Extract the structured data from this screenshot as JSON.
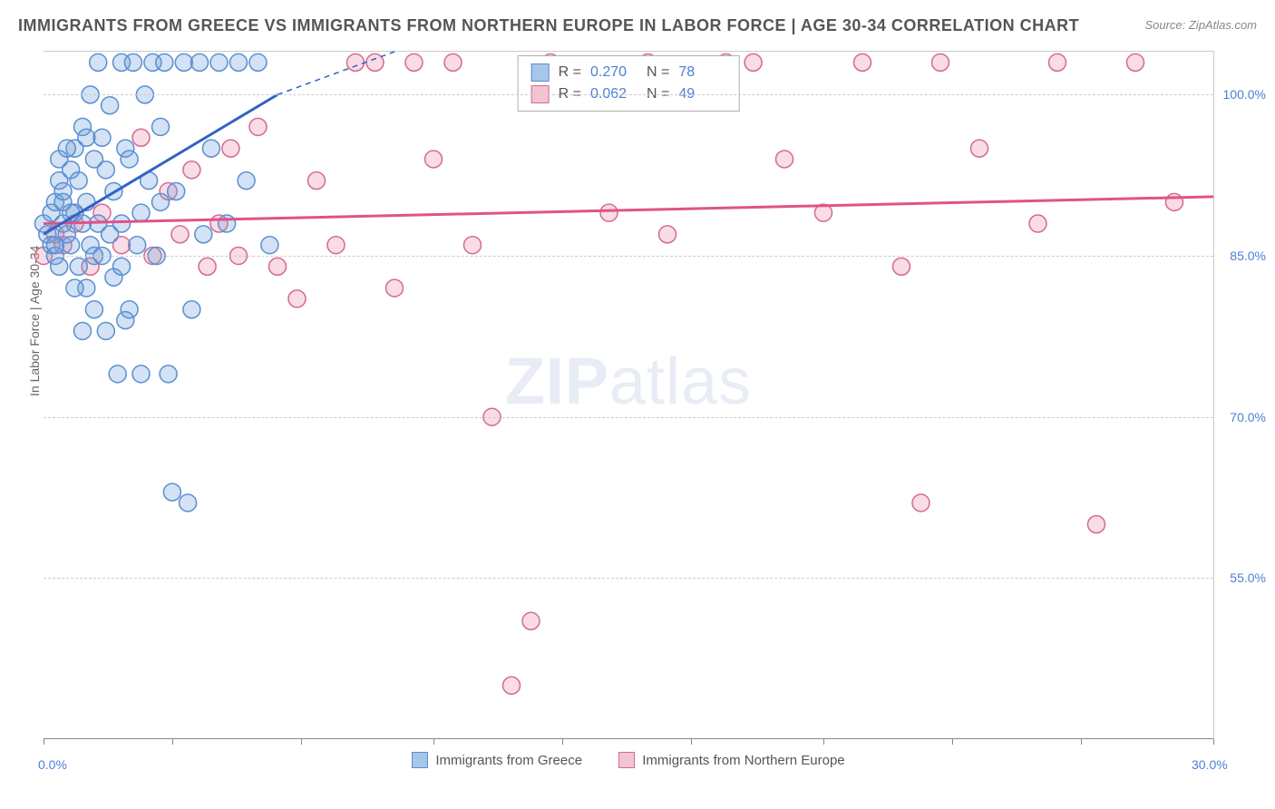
{
  "title": "IMMIGRANTS FROM GREECE VS IMMIGRANTS FROM NORTHERN EUROPE IN LABOR FORCE | AGE 30-34 CORRELATION CHART",
  "source": "Source: ZipAtlas.com",
  "watermark_bold": "ZIP",
  "watermark_rest": "atlas",
  "y_axis_label": "In Labor Force | Age 30-34",
  "xlim": [
    0,
    30
  ],
  "ylim": [
    40,
    104
  ],
  "x_ticks": [
    0,
    3.3,
    6.6,
    10,
    13.3,
    16.6,
    20,
    23.3,
    26.6,
    30
  ],
  "x_tick_labels": {
    "0": "0.0%",
    "30": "30.0%"
  },
  "y_ticks": [
    55,
    70,
    85,
    100
  ],
  "y_tick_labels": {
    "55": "55.0%",
    "70": "70.0%",
    "85": "85.0%",
    "100": "100.0%"
  },
  "grid_color": "#cccccc",
  "background_color": "#ffffff",
  "series": {
    "greece": {
      "label": "Immigrants from Greece",
      "fill": "rgba(108,160,220,0.30)",
      "stroke": "#5a8fd0",
      "swatch_fill": "#a8c6ea",
      "swatch_border": "#5a8fd0",
      "r_value": "0.270",
      "n_value": "78",
      "trend": {
        "x1": 0,
        "y1": 87,
        "x2": 6,
        "y2": 100,
        "color": "#2f63c7",
        "width": 3
      },
      "trend_extrapolate": {
        "x1": 6,
        "y1": 100,
        "x2": 9,
        "y2": 104
      },
      "points": [
        [
          0.0,
          88
        ],
        [
          0.1,
          87
        ],
        [
          0.2,
          89
        ],
        [
          0.2,
          86
        ],
        [
          0.3,
          90
        ],
        [
          0.3,
          85
        ],
        [
          0.4,
          92
        ],
        [
          0.4,
          84
        ],
        [
          0.5,
          88
        ],
        [
          0.5,
          91
        ],
        [
          0.6,
          87
        ],
        [
          0.7,
          93
        ],
        [
          0.7,
          86
        ],
        [
          0.8,
          89
        ],
        [
          0.8,
          95
        ],
        [
          0.9,
          84
        ],
        [
          1.0,
          97
        ],
        [
          1.0,
          88
        ],
        [
          1.1,
          82
        ],
        [
          1.1,
          90
        ],
        [
          1.2,
          86
        ],
        [
          1.2,
          100
        ],
        [
          1.3,
          94
        ],
        [
          1.3,
          80
        ],
        [
          1.4,
          103
        ],
        [
          1.5,
          96
        ],
        [
          1.5,
          85
        ],
        [
          1.6,
          78
        ],
        [
          1.7,
          99
        ],
        [
          1.8,
          91
        ],
        [
          1.8,
          83
        ],
        [
          1.9,
          74
        ],
        [
          2.0,
          103
        ],
        [
          2.0,
          88
        ],
        [
          2.1,
          95
        ],
        [
          2.2,
          80
        ],
        [
          2.3,
          103
        ],
        [
          2.4,
          86
        ],
        [
          2.5,
          74
        ],
        [
          2.6,
          100
        ],
        [
          2.7,
          92
        ],
        [
          2.8,
          103
        ],
        [
          2.9,
          85
        ],
        [
          3.0,
          97
        ],
        [
          3.1,
          103
        ],
        [
          3.2,
          74
        ],
        [
          3.3,
          63
        ],
        [
          3.4,
          91
        ],
        [
          3.6,
          103
        ],
        [
          3.7,
          62
        ],
        [
          3.8,
          80
        ],
        [
          4.0,
          103
        ],
        [
          4.1,
          87
        ],
        [
          4.3,
          95
        ],
        [
          4.5,
          103
        ],
        [
          4.7,
          88
        ],
        [
          5.0,
          103
        ],
        [
          5.2,
          92
        ],
        [
          5.5,
          103
        ],
        [
          5.8,
          86
        ],
        [
          1.0,
          78
        ],
        [
          0.6,
          95
        ],
        [
          1.4,
          88
        ],
        [
          0.9,
          92
        ],
        [
          2.1,
          79
        ],
        [
          0.4,
          94
        ],
        [
          1.7,
          87
        ],
        [
          0.8,
          82
        ],
        [
          1.1,
          96
        ],
        [
          2.5,
          89
        ],
        [
          3.0,
          90
        ],
        [
          0.3,
          86
        ],
        [
          1.6,
          93
        ],
        [
          2.0,
          84
        ],
        [
          0.5,
          90
        ],
        [
          1.3,
          85
        ],
        [
          0.7,
          89
        ],
        [
          2.2,
          94
        ]
      ]
    },
    "neurope": {
      "label": "Immigrants from Northern Europe",
      "fill": "rgba(235,140,170,0.30)",
      "stroke": "#d46a8f",
      "swatch_fill": "#f4c3d2",
      "swatch_border": "#d46a8f",
      "r_value": "0.062",
      "n_value": "49",
      "trend": {
        "x1": 0,
        "y1": 88,
        "x2": 30,
        "y2": 90.5,
        "color": "#e0528a",
        "width": 3
      },
      "points": [
        [
          0.0,
          85
        ],
        [
          0.3,
          87
        ],
        [
          0.5,
          86
        ],
        [
          0.8,
          88
        ],
        [
          1.2,
          84
        ],
        [
          1.5,
          89
        ],
        [
          2.0,
          86
        ],
        [
          2.5,
          96
        ],
        [
          2.8,
          85
        ],
        [
          3.2,
          91
        ],
        [
          3.5,
          87
        ],
        [
          3.8,
          93
        ],
        [
          4.2,
          84
        ],
        [
          4.5,
          88
        ],
        [
          4.8,
          95
        ],
        [
          5.0,
          85
        ],
        [
          5.5,
          97
        ],
        [
          6.0,
          84
        ],
        [
          6.5,
          81
        ],
        [
          7.0,
          92
        ],
        [
          7.5,
          86
        ],
        [
          8.0,
          103
        ],
        [
          8.5,
          103
        ],
        [
          9.0,
          82
        ],
        [
          9.5,
          103
        ],
        [
          10.0,
          94
        ],
        [
          10.5,
          103
        ],
        [
          11.0,
          86
        ],
        [
          11.5,
          70
        ],
        [
          12.0,
          45
        ],
        [
          12.5,
          51
        ],
        [
          13.0,
          103
        ],
        [
          14.5,
          89
        ],
        [
          15.5,
          103
        ],
        [
          16.0,
          87
        ],
        [
          17.5,
          103
        ],
        [
          18.2,
          103
        ],
        [
          19.0,
          94
        ],
        [
          20.0,
          89
        ],
        [
          21.0,
          103
        ],
        [
          22.0,
          84
        ],
        [
          22.5,
          62
        ],
        [
          23.0,
          103
        ],
        [
          24.0,
          95
        ],
        [
          25.5,
          88
        ],
        [
          26.0,
          103
        ],
        [
          27.0,
          60
        ],
        [
          28.0,
          103
        ],
        [
          29.0,
          90
        ]
      ]
    }
  },
  "legend_top_labels": {
    "R": "R =",
    "N": "N ="
  },
  "marker_radius": 9.5
}
